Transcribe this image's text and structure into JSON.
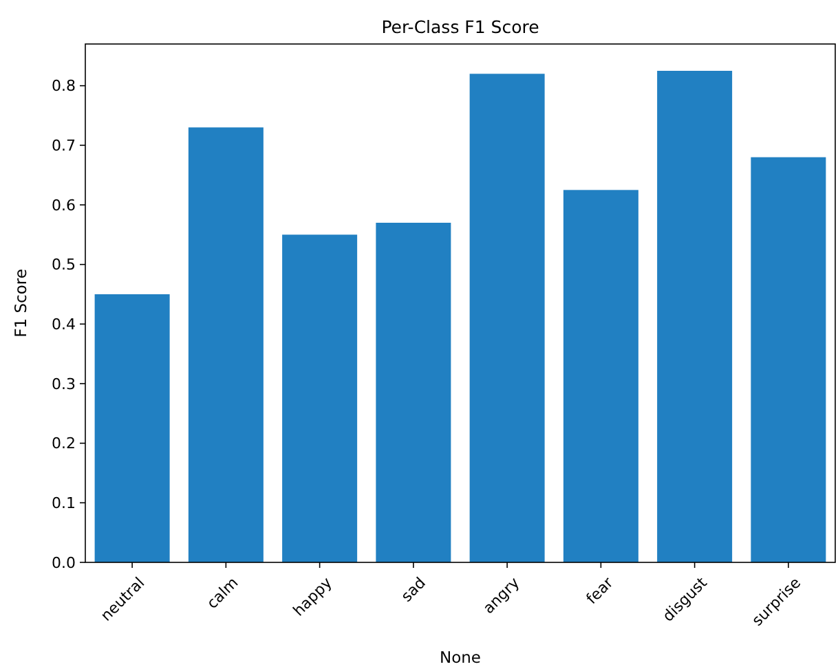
{
  "chart_data": {
    "type": "bar",
    "title": "Per-Class F1 Score",
    "xlabel": "None",
    "ylabel": "F1 Score",
    "categories": [
      "neutral",
      "calm",
      "happy",
      "sad",
      "angry",
      "fear",
      "disgust",
      "surprise"
    ],
    "values": [
      0.45,
      0.73,
      0.55,
      0.57,
      0.82,
      0.625,
      0.825,
      0.68
    ],
    "color": "#2180c2",
    "ylim": [
      0,
      0.87
    ],
    "yticks": [
      {
        "value": 0,
        "label": "0.0"
      },
      {
        "value": 0.1,
        "label": "0.1"
      },
      {
        "value": 0.2,
        "label": "0.2"
      },
      {
        "value": 0.3,
        "label": "0.3"
      },
      {
        "value": 0.4,
        "label": "0.4"
      },
      {
        "value": 0.5,
        "label": "0.5"
      },
      {
        "value": 0.6,
        "label": "0.6"
      },
      {
        "value": 0.7,
        "label": "0.7"
      },
      {
        "value": 0.8,
        "label": "0.8"
      }
    ]
  }
}
